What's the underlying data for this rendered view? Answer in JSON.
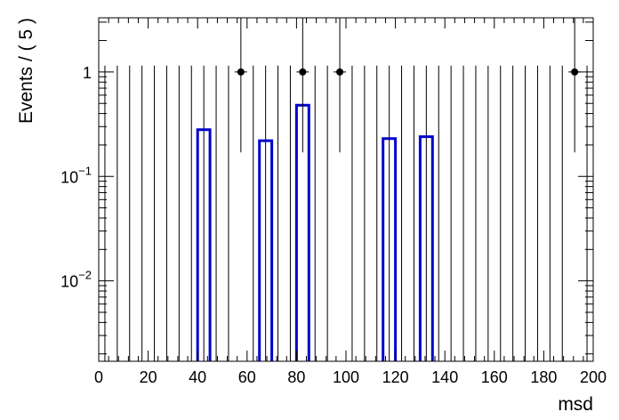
{
  "chart_data": {
    "type": "bar",
    "xlabel": "msd",
    "ylabel": "Events / ( 5 )",
    "xlim": [
      0,
      200
    ],
    "ylim": [
      0.0017,
      3.3
    ],
    "yscale": "log",
    "bin_width": 5,
    "x_ticks": [
      0,
      20,
      40,
      60,
      80,
      100,
      120,
      140,
      160,
      180,
      200
    ],
    "x_tick_labels": [
      "0",
      "20",
      "40",
      "60",
      "80",
      "100",
      "120",
      "140",
      "160",
      "180",
      "200"
    ],
    "y_ticks": [
      {
        "value": 1,
        "base": "1",
        "exp": ""
      },
      {
        "value": 0.1,
        "base": "10",
        "exp": "−1"
      },
      {
        "value": 0.01,
        "base": "10",
        "exp": "−2"
      }
    ],
    "series": [
      {
        "kind": "histogram",
        "color": "#0000cc",
        "bins": [
          {
            "x_low": 40,
            "x_high": 45,
            "value": 0.28
          },
          {
            "x_low": 65,
            "x_high": 70,
            "value": 0.22
          },
          {
            "x_low": 80,
            "x_high": 85,
            "value": 0.48
          },
          {
            "x_low": 115,
            "x_high": 120,
            "value": 0.23
          },
          {
            "x_low": 130,
            "x_high": 135,
            "value": 0.24
          }
        ]
      },
      {
        "kind": "data-points",
        "color": "#000000",
        "empty_bin_upper": 1.15,
        "points": [
          {
            "x": 57.5,
            "y": 1,
            "y_low": 0.17,
            "y_high": 3.3
          },
          {
            "x": 82.5,
            "y": 1,
            "y_low": 0.17,
            "y_high": 3.3
          },
          {
            "x": 97.5,
            "y": 1,
            "y_low": 0.17,
            "y_high": 3.3
          },
          {
            "x": 192.5,
            "y": 1,
            "y_low": 0.17,
            "y_high": 3.3
          }
        ]
      }
    ],
    "grid": false,
    "legend": "none"
  }
}
